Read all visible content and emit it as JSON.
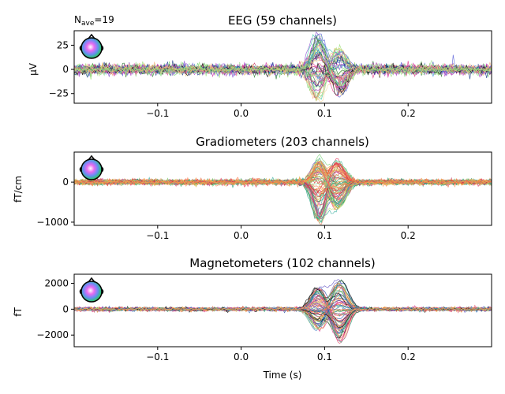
{
  "chart_data": [
    {
      "type": "line",
      "title": "EEG (59 channels)",
      "annotation": {
        "base": "N",
        "sub": "ave",
        "rest": "=19"
      },
      "ylabel": "µV",
      "xlabel": "",
      "xlim": [
        -0.2,
        0.3
      ],
      "ylim": [
        -35,
        40
      ],
      "yticks": [
        -25,
        0,
        25
      ],
      "yticklabels": [
        "−25",
        "0",
        "25"
      ],
      "xticks": [
        -0.1,
        0.0,
        0.1,
        0.2
      ],
      "xticklabels": [
        "−0.1",
        "0.0",
        "0.1",
        "0.2"
      ],
      "n_channels": 59,
      "colors": [
        "#f5d69a",
        "#f7b27d",
        "#e8c36b",
        "#9ee37a",
        "#7bd97a",
        "#3cc8a8",
        "#25b8c7",
        "#3a8fd8",
        "#5a62d8",
        "#8a4fd0",
        "#b13fc4",
        "#d238a8",
        "#e0358a",
        "#c73b6a",
        "#2e7d32",
        "#0a0a0a",
        "#1b3a8f",
        "#a8e6a0"
      ],
      "components": [
        {
          "latency": 0.092,
          "width": 0.011,
          "amplitude_range": [
            -32,
            38
          ]
        },
        {
          "latency": 0.118,
          "width": 0.012,
          "amplitude_range": [
            -28,
            24
          ]
        }
      ],
      "noise_level": 2.2
    },
    {
      "type": "line",
      "title": "Gradiometers (203 channels)",
      "ylabel": "fT/cm",
      "xlabel": "",
      "xlim": [
        -0.2,
        0.3
      ],
      "ylim": [
        -1080,
        750
      ],
      "yticks": [
        -1000,
        0
      ],
      "yticklabels": [
        "−1000",
        "0"
      ],
      "xticks": [
        -0.1,
        0.0,
        0.1,
        0.2
      ],
      "xticklabels": [
        "−0.1",
        "0.0",
        "0.1",
        "0.2"
      ],
      "n_channels": 203,
      "colors": [
        "#f08a5d",
        "#f5a05a",
        "#e8643c",
        "#ff7f50",
        "#e4b84a",
        "#cde07a",
        "#7ed37a",
        "#2aa86b",
        "#1a9d7a",
        "#3bb0a0",
        "#8a5ac8",
        "#c0408a",
        "#e0355c",
        "#d9302a",
        "#a0cf8a"
      ],
      "components": [
        {
          "latency": 0.093,
          "width": 0.01,
          "amplitude_range": [
            -1050,
            650
          ]
        },
        {
          "latency": 0.115,
          "width": 0.012,
          "amplitude_range": [
            -700,
            560
          ]
        }
      ],
      "noise_level": 28
    },
    {
      "type": "line",
      "title": "Magnetometers (102 channels)",
      "ylabel": "fT",
      "xlabel": "Time (s)",
      "xlim": [
        -0.2,
        0.3
      ],
      "ylim": [
        -2900,
        2700
      ],
      "yticks": [
        -2000,
        0,
        2000
      ],
      "yticklabels": [
        "−2000",
        "0",
        "2000"
      ],
      "xticks": [
        -0.1,
        0.0,
        0.1,
        0.2
      ],
      "xticklabels": [
        "−0.1",
        "0.0",
        "0.1",
        "0.2"
      ],
      "n_channels": 102,
      "colors": [
        "#f5c16c",
        "#f08a5d",
        "#e24f6a",
        "#d93a8a",
        "#ff5c8a",
        "#2aa86b",
        "#1a9d7a",
        "#3e7cc8",
        "#2b4fb0",
        "#6a5ac8",
        "#e58a2c",
        "#0a0a0a",
        "#8ed18a"
      ],
      "components": [
        {
          "latency": 0.092,
          "width": 0.011,
          "amplitude_range": [
            -1600,
            1700
          ]
        },
        {
          "latency": 0.118,
          "width": 0.012,
          "amplitude_range": [
            -2600,
            2200
          ]
        }
      ],
      "noise_level": 60
    }
  ],
  "style": {
    "axis_color": "#000000",
    "background": "#ffffff",
    "head_outline": "#000000"
  }
}
